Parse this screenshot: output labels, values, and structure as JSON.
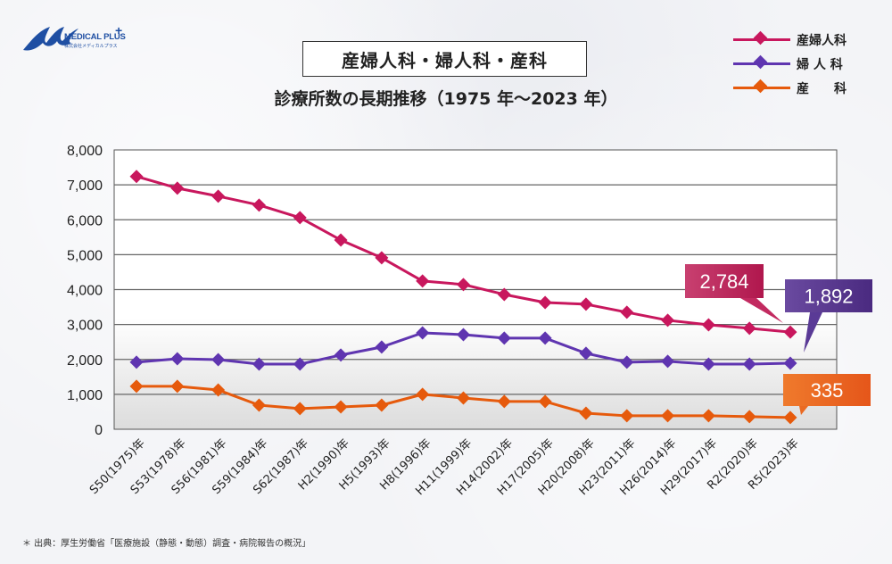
{
  "brand": {
    "name": "MEDICAL PLUS",
    "plus": "+",
    "subtitle": "株式会社メディカルプラス",
    "color": "#1f4fa3"
  },
  "header": {
    "title": "産婦人科・婦人科・産科",
    "subtitle": "診療所数の長期推移（1975 年～2023 年）"
  },
  "legend": [
    {
      "label": "産婦人科",
      "color": "#c8175d"
    },
    {
      "label": "婦 人 科",
      "color": "#5f35b0"
    },
    {
      "label": "産　　科",
      "color": "#e65a0c"
    }
  ],
  "source": "＊ 出典：厚生労働省「医療施設（静態・動態）調査・病院報告の概況」",
  "chart_data": {
    "type": "line",
    "title": "産婦人科・婦人科・産科 診療所数の長期推移（1975 年～2023 年）",
    "xlabel": "",
    "ylabel": "",
    "ylim": [
      0,
      8000
    ],
    "yticks": [
      0,
      1000,
      2000,
      3000,
      4000,
      5000,
      6000,
      7000,
      8000
    ],
    "ytick_labels": [
      "0",
      "1,000",
      "2,000",
      "3,000",
      "4,000",
      "5,000",
      "6,000",
      "7,000",
      "8,000"
    ],
    "grid": true,
    "legend_position": "top-right",
    "categories": [
      "S50(1975)年",
      "S53(1978)年",
      "S56(1981)年",
      "S59(1984)年",
      "S62(1987)年",
      "H2(1990)年",
      "H5(1993)年",
      "H8(1996)年",
      "H11(1999)年",
      "H14(2002)年",
      "H17(2005)年",
      "H20(2008)年",
      "H23(2011)年",
      "H26(2014)年",
      "H29(2017)年",
      "R2(2020)年",
      "R5(2023)年"
    ],
    "series": [
      {
        "name": "産婦人科",
        "color": "#c8175d",
        "values": [
          7240,
          6905,
          6675,
          6420,
          6060,
          5420,
          4910,
          4245,
          4145,
          3860,
          3630,
          3580,
          3350,
          3120,
          2990,
          2890,
          2784
        ]
      },
      {
        "name": "婦人科",
        "color": "#5f35b0",
        "values": [
          1920,
          2020,
          1995,
          1865,
          1865,
          2125,
          2355,
          2760,
          2710,
          2610,
          2610,
          2175,
          1920,
          1945,
          1865,
          1865,
          1892
        ]
      },
      {
        "name": "産科",
        "color": "#e65a0c",
        "values": [
          1230,
          1230,
          1125,
          690,
          590,
          640,
          690,
          1000,
          895,
          795,
          795,
          460,
          385,
          385,
          385,
          360,
          335
        ]
      }
    ],
    "annotations": [
      {
        "series": "産婦人科",
        "text": "2,784",
        "color": "#c22a60"
      },
      {
        "series": "婦人科",
        "text": "1,892",
        "color": "#5a3a96"
      },
      {
        "series": "産科",
        "text": "335",
        "color": "#ea6a22"
      }
    ]
  }
}
